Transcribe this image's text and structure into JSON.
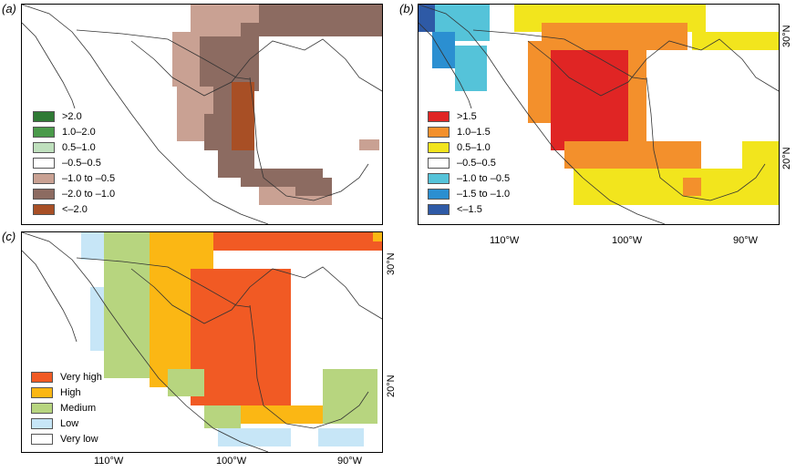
{
  "panels": {
    "a": {
      "label": "(a)",
      "legend": [
        {
          "label": ">2.0",
          "color": "#2f7a35"
        },
        {
          "label": "1.0–2.0",
          "color": "#4a9a4a"
        },
        {
          "label": "0.5–1.0",
          "color": "#bfe0bd"
        },
        {
          "label": "–0.5–0.5",
          "color": "#ffffff"
        },
        {
          "label": "–1.0 to –0.5",
          "color": "#c9a193"
        },
        {
          "label": "–2.0 to –1.0",
          "color": "#8c6b61"
        },
        {
          "label": "<–2.0",
          "color": "#a84f25"
        }
      ]
    },
    "b": {
      "label": "(b)",
      "lat_labels": [
        "30°N",
        "20°N"
      ],
      "lon_labels": [
        "110°W",
        "100°W",
        "90°W"
      ],
      "legend": [
        {
          "label": ">1.5",
          "color": "#e02524"
        },
        {
          "label": "1.0–1.5",
          "color": "#f3902c"
        },
        {
          "label": "0.5–1.0",
          "color": "#f2e51d"
        },
        {
          "label": "–0.5–0.5",
          "color": "#ffffff"
        },
        {
          "label": "–1.0 to –0.5",
          "color": "#55c3d9"
        },
        {
          "label": "–1.5 to –1.0",
          "color": "#2b8fd1"
        },
        {
          "label": "<–1.5",
          "color": "#2e5aa6"
        }
      ]
    },
    "c": {
      "label": "(c)",
      "lat_labels": [
        "30°N",
        "20°N"
      ],
      "lon_labels": [
        "110°W",
        "100°W",
        "90°W"
      ],
      "legend": [
        {
          "label": "Very high",
          "color": "#f15a24"
        },
        {
          "label": "High",
          "color": "#fbb714"
        },
        {
          "label": "Medium",
          "color": "#b7d57f"
        },
        {
          "label": "Low",
          "color": "#c7e6f7"
        },
        {
          "label": "Very low",
          "color": "#ffffff"
        }
      ]
    }
  }
}
